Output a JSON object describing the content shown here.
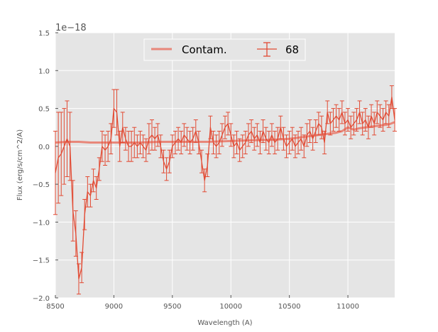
{
  "chart_data": {
    "type": "line",
    "xlabel": "Wavelength (A)",
    "ylabel": "Flux (erg/s/cm^2/A)",
    "y_offset_label": "1e−18",
    "xlim": [
      8500,
      11400
    ],
    "ylim": [
      -2.0,
      1.5
    ],
    "xticks": [
      8500,
      9000,
      9500,
      10000,
      10500,
      11000
    ],
    "xtick_labels": [
      "8500",
      "9000",
      "9500",
      "10000",
      "10500",
      "11000"
    ],
    "yticks": [
      -2.0,
      -1.5,
      -1.0,
      -0.5,
      0.0,
      0.5,
      1.0,
      1.5
    ],
    "ytick_labels": [
      "−2.0",
      "−1.5",
      "−1.0",
      "−0.5",
      "0.0",
      "0.5",
      "1.0",
      "1.5"
    ],
    "grid": true,
    "legend": {
      "placement": "top-center",
      "entries": [
        "Contam.",
        "68"
      ]
    },
    "colors": {
      "series": "#e24a33",
      "contam": "#e8877a",
      "background": "#e5e5e5",
      "grid": "#ffffff"
    },
    "series": [
      {
        "name": "Contam.",
        "style": "thick-line",
        "x": [
          8500,
          8600,
          8700,
          8800,
          9000,
          9200,
          9400,
          9600,
          9800,
          10000,
          10200,
          10400,
          10500,
          10600,
          10700,
          10800,
          10900,
          10950,
          11000,
          11050,
          11100,
          11200,
          11300,
          11350,
          11400
        ],
        "y": [
          0.05,
          0.06,
          0.06,
          0.05,
          0.05,
          0.05,
          0.06,
          0.06,
          0.06,
          0.07,
          0.08,
          0.09,
          0.1,
          0.12,
          0.14,
          0.16,
          0.18,
          0.2,
          0.25,
          0.22,
          0.24,
          0.26,
          0.28,
          0.29,
          0.32
        ]
      },
      {
        "name": "68",
        "style": "errorbar",
        "x": [
          8500,
          8525,
          8550,
          8575,
          8600,
          8625,
          8650,
          8675,
          8700,
          8725,
          8750,
          8775,
          8800,
          8825,
          8850,
          8875,
          8900,
          8925,
          8950,
          8975,
          9000,
          9025,
          9050,
          9075,
          9100,
          9125,
          9150,
          9175,
          9200,
          9225,
          9250,
          9275,
          9300,
          9325,
          9350,
          9375,
          9400,
          9425,
          9450,
          9475,
          9500,
          9525,
          9550,
          9575,
          9600,
          9625,
          9650,
          9675,
          9700,
          9725,
          9750,
          9775,
          9800,
          9825,
          9850,
          9875,
          9900,
          9925,
          9950,
          9975,
          10000,
          10025,
          10050,
          10075,
          10100,
          10125,
          10150,
          10175,
          10200,
          10225,
          10250,
          10275,
          10300,
          10325,
          10350,
          10375,
          10400,
          10425,
          10450,
          10475,
          10500,
          10525,
          10550,
          10575,
          10600,
          10625,
          10650,
          10675,
          10700,
          10725,
          10750,
          10775,
          10800,
          10825,
          10850,
          10875,
          10900,
          10925,
          10950,
          10975,
          11000,
          11025,
          11050,
          11075,
          11100,
          11125,
          11150,
          11175,
          11200,
          11225,
          11250,
          11275,
          11300,
          11325,
          11350,
          11375,
          11400
        ],
        "y": [
          -0.35,
          -0.15,
          -0.1,
          0.0,
          0.1,
          0.0,
          -0.85,
          -1.15,
          -1.75,
          -1.6,
          -0.9,
          -0.6,
          -0.65,
          -0.45,
          -0.55,
          -0.3,
          0.0,
          -0.05,
          0.0,
          0.1,
          0.5,
          0.45,
          0.0,
          0.25,
          0.1,
          0.0,
          0.0,
          0.05,
          0.0,
          0.05,
          0.0,
          -0.05,
          0.1,
          0.15,
          0.1,
          0.15,
          0.0,
          -0.2,
          -0.3,
          -0.2,
          0.0,
          0.05,
          0.1,
          0.05,
          0.15,
          0.1,
          0.05,
          0.1,
          0.2,
          0.05,
          -0.2,
          -0.45,
          -0.25,
          0.25,
          0.05,
          0.0,
          0.05,
          0.15,
          0.25,
          0.3,
          0.15,
          0.0,
          0.05,
          -0.05,
          0.0,
          0.05,
          0.15,
          0.2,
          0.1,
          0.15,
          0.05,
          0.2,
          0.1,
          0.05,
          0.15,
          0.05,
          0.1,
          0.25,
          0.1,
          0.0,
          0.05,
          0.1,
          0.0,
          0.05,
          0.1,
          0.0,
          0.15,
          0.2,
          0.1,
          0.2,
          0.3,
          0.25,
          0.05,
          0.45,
          0.3,
          0.35,
          0.4,
          0.35,
          0.45,
          0.3,
          0.35,
          0.25,
          0.3,
          0.35,
          0.45,
          0.3,
          0.35,
          0.25,
          0.4,
          0.3,
          0.45,
          0.4,
          0.35,
          0.45,
          0.4,
          0.65,
          0.35
        ],
        "yerr": [
          0.55,
          0.6,
          0.55,
          0.5,
          0.5,
          0.45,
          0.4,
          0.3,
          0.2,
          0.2,
          0.2,
          0.2,
          0.15,
          0.15,
          0.15,
          0.15,
          0.2,
          0.2,
          0.2,
          0.2,
          0.25,
          0.3,
          0.2,
          0.2,
          0.15,
          0.2,
          0.2,
          0.2,
          0.15,
          0.15,
          0.15,
          0.15,
          0.2,
          0.2,
          0.15,
          0.15,
          0.15,
          0.15,
          0.15,
          0.15,
          0.15,
          0.15,
          0.15,
          0.15,
          0.15,
          0.15,
          0.15,
          0.15,
          0.15,
          0.15,
          0.15,
          0.15,
          0.15,
          0.15,
          0.15,
          0.15,
          0.15,
          0.15,
          0.15,
          0.15,
          0.15,
          0.15,
          0.15,
          0.15,
          0.15,
          0.15,
          0.15,
          0.15,
          0.15,
          0.15,
          0.15,
          0.15,
          0.15,
          0.15,
          0.15,
          0.15,
          0.15,
          0.15,
          0.15,
          0.15,
          0.15,
          0.15,
          0.15,
          0.15,
          0.15,
          0.15,
          0.15,
          0.15,
          0.15,
          0.15,
          0.15,
          0.15,
          0.15,
          0.15,
          0.15,
          0.15,
          0.15,
          0.15,
          0.15,
          0.15,
          0.15,
          0.15,
          0.15,
          0.15,
          0.15,
          0.15,
          0.15,
          0.15,
          0.15,
          0.15,
          0.15,
          0.15,
          0.15,
          0.15,
          0.15,
          0.15,
          0.15
        ]
      }
    ]
  }
}
